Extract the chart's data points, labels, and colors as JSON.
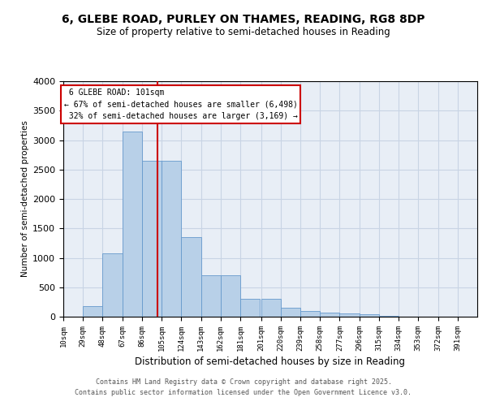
{
  "title_line1": "6, GLEBE ROAD, PURLEY ON THAMES, READING, RG8 8DP",
  "title_line2": "Size of property relative to semi-detached houses in Reading",
  "xlabel": "Distribution of semi-detached houses by size in Reading",
  "ylabel": "Number of semi-detached properties",
  "property_label": "6 GLEBE ROAD: 101sqm",
  "pct_smaller": 67,
  "count_smaller": 6498,
  "pct_larger": 32,
  "count_larger": 3169,
  "bin_labels": [
    "10sqm",
    "29sqm",
    "48sqm",
    "67sqm",
    "86sqm",
    "105sqm",
    "124sqm",
    "143sqm",
    "162sqm",
    "181sqm",
    "201sqm",
    "220sqm",
    "239sqm",
    "258sqm",
    "277sqm",
    "296sqm",
    "315sqm",
    "334sqm",
    "353sqm",
    "372sqm",
    "391sqm"
  ],
  "bin_edges": [
    10,
    29,
    48,
    67,
    86,
    105,
    124,
    143,
    162,
    181,
    201,
    220,
    239,
    258,
    277,
    296,
    315,
    334,
    353,
    372,
    391
  ],
  "bar_heights": [
    5,
    175,
    1075,
    3150,
    2650,
    2650,
    1350,
    700,
    700,
    310,
    310,
    150,
    100,
    70,
    55,
    35,
    10,
    3,
    2,
    1,
    0
  ],
  "bar_color": "#b8d0e8",
  "bar_edge_color": "#6699cc",
  "vline_color": "#cc0000",
  "vline_x": 101,
  "grid_color": "#c8d4e4",
  "bg_color": "#e8eef6",
  "ylim": [
    0,
    4000
  ],
  "yticks": [
    0,
    500,
    1000,
    1500,
    2000,
    2500,
    3000,
    3500,
    4000
  ],
  "footer_line1": "Contains HM Land Registry data © Crown copyright and database right 2025.",
  "footer_line2": "Contains public sector information licensed under the Open Government Licence v3.0."
}
